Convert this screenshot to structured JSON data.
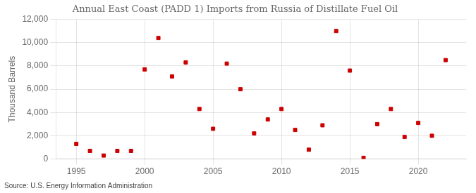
{
  "chart_data": {
    "type": "scatter",
    "title": "Annual East Coast (PADD 1) Imports from Russia of Distillate Fuel Oil",
    "ylabel": "Thousand Barrels",
    "source": "Source: U.S. Energy Information Administration",
    "x": [
      1995,
      1996,
      1997,
      1998,
      1999,
      2000,
      2001,
      2002,
      2003,
      2004,
      2005,
      2006,
      2007,
      2008,
      2009,
      2010,
      2011,
      2012,
      2013,
      2014,
      2015,
      2016,
      2017,
      2018,
      2019,
      2020,
      2021,
      2022
    ],
    "values": [
      1300,
      700,
      300,
      700,
      700,
      7700,
      10400,
      7100,
      8300,
      4300,
      2600,
      8200,
      6000,
      2200,
      3400,
      4300,
      2500,
      800,
      2900,
      11000,
      7600,
      100,
      3000,
      4300,
      1900,
      3100,
      2000,
      8500
    ],
    "color": "#cc0000",
    "marker": "square",
    "xlim": [
      1993.5,
      2023.5
    ],
    "ylim": [
      0,
      12000
    ],
    "xticks": [
      1995,
      2000,
      2005,
      2010,
      2015,
      2020
    ],
    "yticks": [
      0,
      {
        "value": 2000,
        "label": "2,000"
      },
      {
        "value": 4000,
        "label": "4,000"
      },
      {
        "value": 6000,
        "label": "6,000"
      },
      {
        "value": 8000,
        "label": "8,000"
      },
      {
        "value": 10000,
        "label": "10,000"
      },
      {
        "value": 12000,
        "label": "12,000"
      }
    ],
    "grid": true
  }
}
